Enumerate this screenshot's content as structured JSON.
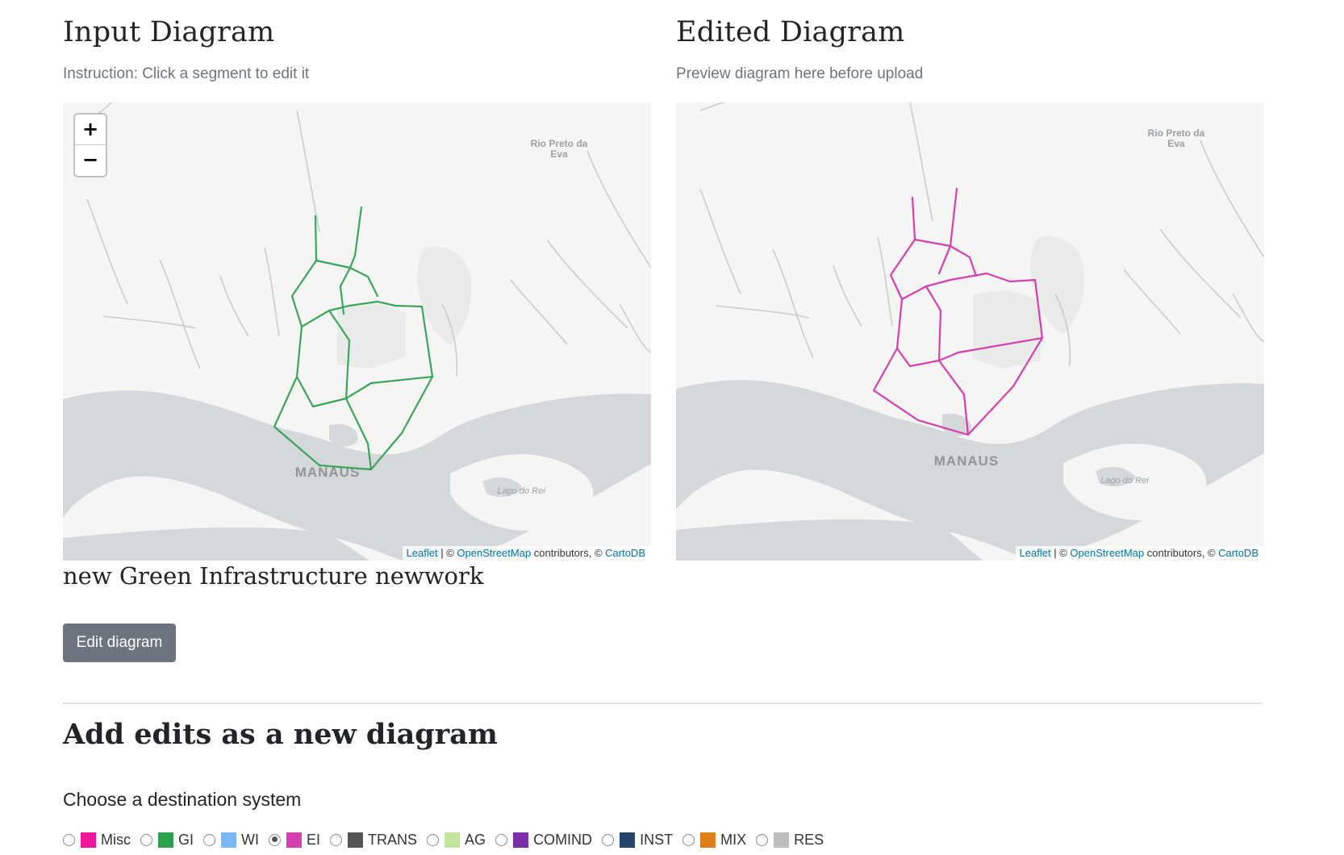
{
  "input_panel": {
    "title": "Input Diagram",
    "instruction": "Instruction: Click a segment to edit it",
    "line_color": "#3ba55c"
  },
  "edited_panel": {
    "title": "Edited Diagram",
    "subtitle": "Preview diagram here before upload",
    "line_color": "#d63fb0"
  },
  "map": {
    "labels": {
      "rio_preto_line1": "Rio Preto da",
      "rio_preto_line2": "Eva",
      "city": "MANAUS",
      "lago": "Lago do Rei"
    },
    "zoom_in": "+",
    "zoom_out": "−",
    "attribution": {
      "leaflet": "Leaflet",
      "sep": " | © ",
      "osm": "OpenStreetMap",
      "contrib": " contributors, © ",
      "carto": "CartoDB"
    },
    "colors": {
      "land": "#f5f5f3",
      "water": "#d4d8da",
      "park": "#e9ebe8",
      "label": "#9aa0a6"
    }
  },
  "network_name": "new Green Infrastructure newwork",
  "edit_button": "Edit diagram",
  "add_section": {
    "title": "Add edits as a new diagram",
    "choose_label": "Choose a destination system"
  },
  "systems": [
    {
      "label": "Misc",
      "color": "#f0189a",
      "checked": false
    },
    {
      "label": "GI",
      "color": "#2ca04f",
      "checked": false
    },
    {
      "label": "WI",
      "color": "#7ab8f5",
      "checked": false
    },
    {
      "label": "EI",
      "color": "#d63fb0",
      "checked": true
    },
    {
      "label": "TRANS",
      "color": "#555555",
      "checked": false
    },
    {
      "label": "AG",
      "color": "#c1e59a",
      "checked": false
    },
    {
      "label": "COMIND",
      "color": "#7a2fa8",
      "checked": false
    },
    {
      "label": "INST",
      "color": "#25456b",
      "checked": false
    },
    {
      "label": "MIX",
      "color": "#e07f1a",
      "checked": false
    },
    {
      "label": "RES",
      "color": "#bdbdbd",
      "checked": false
    }
  ]
}
